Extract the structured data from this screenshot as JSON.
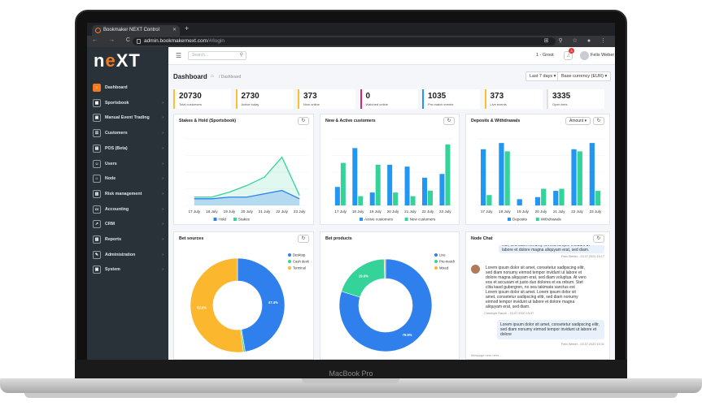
{
  "browser": {
    "tab_title": "Bookmaker NEXT Control",
    "tab_close": "✕",
    "new_tab": "+",
    "url_host": "admin.bookmakernext.com",
    "url_path": "/#/login",
    "nav_glyphs": "← → C",
    "right_glyphs": "⊞ ⚲ ☆ ● ⋮"
  },
  "laptop_label": "MacBook Pro",
  "logo": {
    "n": "n",
    "e": "e",
    "rest": "XT"
  },
  "sidebar": {
    "items": [
      {
        "label": "Dashboard",
        "glyph": "⌂",
        "chevron": ""
      },
      {
        "label": "Sportsbook",
        "glyph": "▦",
        "chevron": "›"
      },
      {
        "label": "Manual Event Trading",
        "glyph": "▣",
        "chevron": "›"
      },
      {
        "label": "Customers",
        "glyph": "☰",
        "chevron": "›"
      },
      {
        "label": "POS (Beta)",
        "glyph": "▤",
        "chevron": "›"
      },
      {
        "label": "Users",
        "glyph": "☺",
        "chevron": "›"
      },
      {
        "label": "Node",
        "glyph": "⌂",
        "chevron": "›"
      },
      {
        "label": "Risk management",
        "glyph": "▥",
        "chevron": "›"
      },
      {
        "label": "Accounting",
        "glyph": "▭",
        "chevron": "›"
      },
      {
        "label": "CRM",
        "glyph": "↗",
        "chevron": "›"
      },
      {
        "label": "Reports",
        "glyph": "▧",
        "chevron": "›"
      },
      {
        "label": "Administration",
        "glyph": "✎",
        "chevron": "›"
      },
      {
        "label": "System",
        "glyph": "▣",
        "chevron": "›"
      }
    ]
  },
  "topbar": {
    "menu_glyph": "☰",
    "search_placeholder": "Search...",
    "search_glyph": "⚲",
    "location": "1 - Groot",
    "bell_glyph": "♫",
    "notif_count": "3",
    "user_name": "Felix Weber"
  },
  "page": {
    "title": "Dashboard",
    "home_glyph": "⌂",
    "breadcrumb": "/ Dashboard",
    "period_button": "Last 7 days ▾",
    "currency_button": "Base currency (EUR) ▾"
  },
  "stats": [
    {
      "value": "20730",
      "label": "Total customers",
      "color": "#fbc02d"
    },
    {
      "value": "2730",
      "label": "Active today",
      "color": "#fbc02d"
    },
    {
      "value": "373",
      "label": "Now online",
      "color": "#fbc02d"
    },
    {
      "value": "0",
      "label": "Watched online",
      "color": "#e91e63"
    },
    {
      "value": "1035",
      "label": "Pre-match events",
      "color": "#2196f3"
    },
    {
      "value": "373",
      "label": "Live events",
      "color": "#fbc02d"
    },
    {
      "value": "3335",
      "label": "Open bets",
      "color": "#e0e0e0"
    }
  ],
  "cards": {
    "stakes_title": "Stakes & Hold (Sportsbook)",
    "customers_title": "New & Active customers",
    "deposits_title": "Deposits & Withdrawals",
    "amount_button": "Amount ▾",
    "sources_title": "Bet sources",
    "products_title": "Bet products",
    "chat_title": "Node Chat",
    "refresh_glyph": "↻"
  },
  "chart_data": [
    {
      "type": "line",
      "categories": [
        "17 July",
        "18 July",
        "19 July",
        "20 July",
        "21 July",
        "22 July",
        "23 July"
      ],
      "series": [
        {
          "name": "Hold",
          "values": [
            4,
            4,
            5,
            5,
            7,
            9,
            4
          ],
          "color": "#2f80ed"
        },
        {
          "name": "Stakes",
          "values": [
            5,
            5,
            8,
            12,
            17,
            29,
            6
          ],
          "color": "#34d399"
        }
      ],
      "ylim": [
        0,
        40
      ],
      "grid": true,
      "legend": "bottom"
    },
    {
      "type": "bar",
      "categories": [
        "17 July",
        "18 July",
        "19 July",
        "20 July",
        "21 July",
        "22 July",
        "23 July"
      ],
      "series": [
        {
          "name": "Active customers",
          "values": [
            10,
            31,
            7,
            22,
            21,
            15,
            17
          ],
          "color": "#2196f3"
        },
        {
          "name": "New customers",
          "values": [
            23,
            5,
            22,
            7,
            5,
            8,
            33
          ],
          "color": "#34d399"
        }
      ],
      "ylim": [
        0,
        36
      ],
      "grid": true,
      "legend": "bottom"
    },
    {
      "type": "bar",
      "categories": [
        "17 July",
        "18 July",
        "19 July",
        "20 July",
        "21 July",
        "22 July",
        "23 July"
      ],
      "series": [
        {
          "name": "Deposits",
          "values": [
            27,
            30,
            3,
            4,
            7,
            27,
            30
          ],
          "color": "#2196f3"
        },
        {
          "name": "Withdrawals",
          "values": [
            5,
            26,
            0,
            8,
            8,
            26,
            7
          ],
          "color": "#34d399"
        }
      ],
      "ylim": [
        0,
        32
      ],
      "grid": true,
      "legend": "bottom"
    },
    {
      "type": "pie",
      "donut": true,
      "slices": [
        {
          "name": "Desktop",
          "value": 47.4,
          "label": "47.4%",
          "color": "#2f80ed"
        },
        {
          "name": "Cash desk",
          "value": 0.6,
          "label": "",
          "color": "#34d399"
        },
        {
          "name": "Terminal",
          "value": 52.0,
          "label": "52.0%",
          "color": "#fbb72d"
        }
      ],
      "legend": "right"
    },
    {
      "type": "pie",
      "donut": true,
      "slices": [
        {
          "name": "Live",
          "value": 79.9,
          "label": "79.9%",
          "color": "#2f80ed"
        },
        {
          "name": "Pre-match",
          "value": 19.6,
          "label": "19.6%",
          "color": "#34d399"
        },
        {
          "name": "Mixed",
          "value": 0.5,
          "label": "",
          "color": "#fbb72d"
        }
      ],
      "legend": "right"
    }
  ],
  "chat": {
    "top_fragment": "elitr, sed diam nonumy eirmod tempor invidunt ut labore et dolore magna aliquyam erat, sed diam.",
    "top_meta": "Felix Weber - 23.07.2020 15:17",
    "msg_left": "Lorem ipsum dolor sit amet, consetetur sadipscing elitr, sed diam nonumy eirmod tempor invidunt ut labore et dolore magna aliquyam erat, sed diam voluptua. At vero eos et accusam et justo duo dolores et ea rebum. Stet clita kasd gubergren, no sea takimata sanctus est Lorem ipsum dolor sit amet. Lorem ipsum dolor sit amet, consetetur sadipscing elitr, sed diam nonumy eirmod tempor invidunt ut labore et dolore magna aliquyam erat, sed diam.",
    "msg_left_meta": "Christoph Rauch - 23.07.2020 15:37",
    "msg_right": "Lorem ipsum dolor sit amet, consetetur sadipscing elitr, sed diam nonumy eirmod tempor invidunt ut labore et dolore",
    "msg_right_meta": "Felix Weber - 23.07.2020 15:31",
    "input_placeholder": "Message here here..."
  }
}
